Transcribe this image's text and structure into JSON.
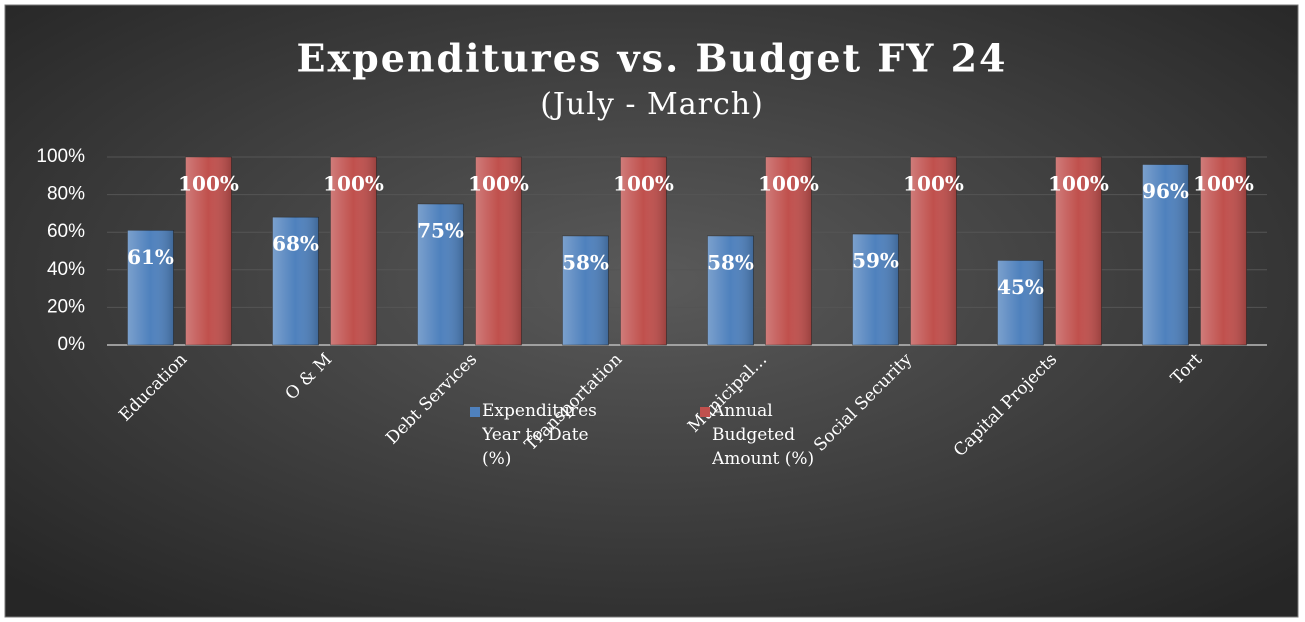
{
  "chart_data": {
    "type": "bar",
    "title": "Expenditures vs. Budget FY 24",
    "subtitle": "(July - March)",
    "categories": [
      "Education",
      "O & M",
      "Debt Services",
      "Transportation",
      "Municipal…",
      "Social Security",
      "Capital Projects",
      "Tort"
    ],
    "series": [
      {
        "name": "Expenditures Year to Date (%)",
        "color": "#4f81bd",
        "values": [
          61,
          68,
          75,
          58,
          58,
          59,
          45,
          96
        ],
        "value_labels": [
          "61%",
          "68%",
          "75%",
          "58%",
          "58%",
          "59%",
          "45%",
          "96%"
        ]
      },
      {
        "name": "Annual Budgeted Amount (%)",
        "color": "#c0504d",
        "values": [
          100,
          100,
          100,
          100,
          100,
          100,
          100,
          100
        ],
        "value_labels": [
          "100%",
          "100%",
          "100%",
          "100%",
          "100%",
          "100%",
          "100%",
          "100%"
        ]
      }
    ],
    "ylim": [
      0,
      100
    ],
    "yticks": [
      {
        "value": 0,
        "label": "0%"
      },
      {
        "value": 20,
        "label": "20%"
      },
      {
        "value": 40,
        "label": "40%"
      },
      {
        "value": 60,
        "label": "60%"
      },
      {
        "value": 80,
        "label": "80%"
      },
      {
        "value": 100,
        "label": "100%"
      }
    ],
    "grid": true,
    "legend": "bottom"
  }
}
